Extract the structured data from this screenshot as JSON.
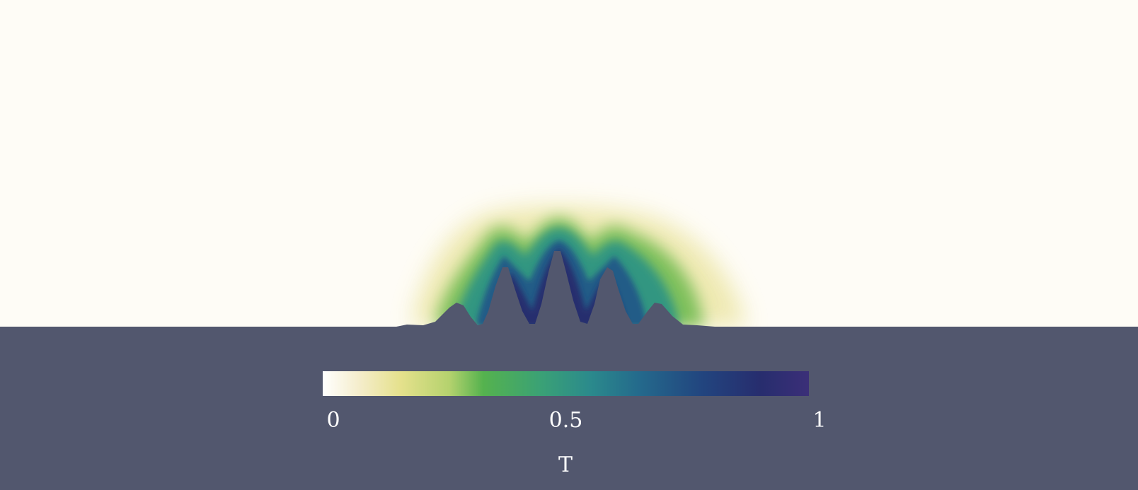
{
  "chart_data": {
    "type": "heatmap",
    "field": "T",
    "colorbar": {
      "title": "T",
      "range": [
        0,
        1
      ],
      "ticks": [
        {
          "value": 0,
          "label": "0"
        },
        {
          "value": 0.5,
          "label": "0.5"
        },
        {
          "value": 1,
          "label": "1"
        }
      ],
      "colormap": [
        {
          "value": 0.0,
          "color": "#ffffff"
        },
        {
          "value": 0.08,
          "color": "#f4ecc8"
        },
        {
          "value": 0.16,
          "color": "#e5e18c"
        },
        {
          "value": 0.26,
          "color": "#b5d26e"
        },
        {
          "value": 0.33,
          "color": "#55b24e"
        },
        {
          "value": 0.45,
          "color": "#3aa176"
        },
        {
          "value": 0.55,
          "color": "#2b8a8c"
        },
        {
          "value": 0.65,
          "color": "#246a8c"
        },
        {
          "value": 0.78,
          "color": "#22457f"
        },
        {
          "value": 0.9,
          "color": "#272d6e"
        },
        {
          "value": 1.0,
          "color": "#3b2f78"
        }
      ]
    },
    "colors": {
      "background": "#fefcf6",
      "solid": "#52576e",
      "text": "#ffffff"
    }
  }
}
